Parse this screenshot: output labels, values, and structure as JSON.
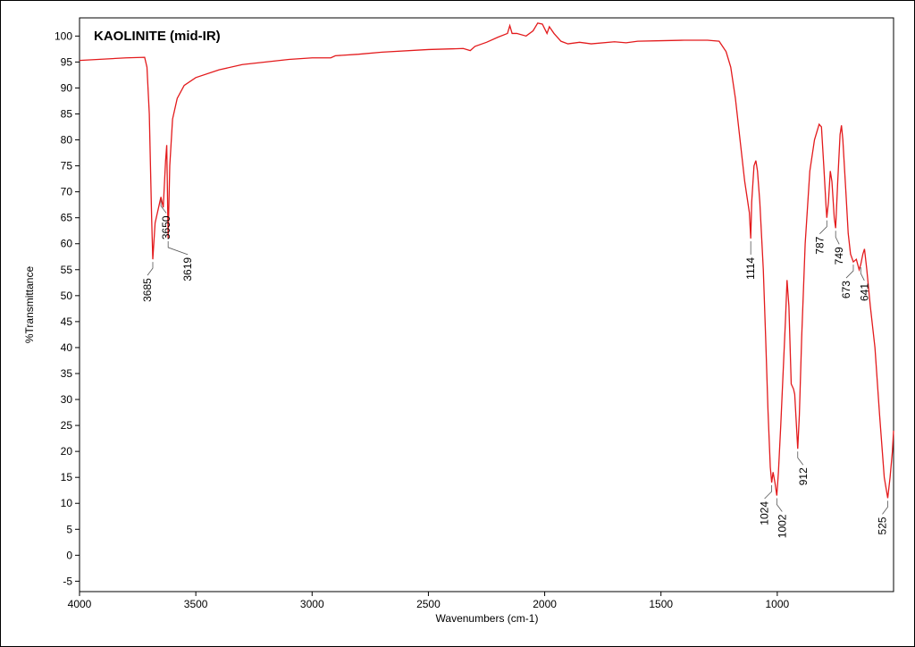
{
  "chart_data": {
    "type": "line",
    "title": "KAOLINITE (mid-IR)",
    "x_label": "Wavenumbers (cm-1)",
    "y_label": "%Transmittance",
    "color": "#e31a1c",
    "xlim": [
      4000,
      500
    ],
    "ylim": [
      -7,
      103.5
    ],
    "xticks": [
      4000,
      3500,
      3000,
      2500,
      2000,
      1500,
      1000
    ],
    "yticks": [
      -5,
      0,
      5,
      10,
      15,
      20,
      25,
      30,
      35,
      40,
      45,
      50,
      55,
      60,
      65,
      70,
      75,
      80,
      85,
      90,
      95,
      100
    ],
    "x": [
      4000,
      3800,
      3720,
      3710,
      3700,
      3690,
      3685,
      3675,
      3665,
      3650,
      3640,
      3630,
      3625,
      3619,
      3612,
      3600,
      3580,
      3550,
      3500,
      3400,
      3300,
      3100,
      3000,
      2920,
      2900,
      2800,
      2700,
      2500,
      2350,
      2320,
      2300,
      2250,
      2200,
      2160,
      2150,
      2140,
      2120,
      2080,
      2050,
      2030,
      2010,
      1990,
      1980,
      1960,
      1930,
      1900,
      1850,
      1800,
      1700,
      1650,
      1600,
      1500,
      1400,
      1300,
      1250,
      1220,
      1200,
      1180,
      1160,
      1140,
      1120,
      1114,
      1110,
      1100,
      1092,
      1085,
      1075,
      1060,
      1050,
      1040,
      1030,
      1024,
      1018,
      1010,
      1002,
      995,
      985,
      975,
      965,
      958,
      950,
      940,
      930,
      925,
      912,
      905,
      895,
      880,
      860,
      840,
      820,
      810,
      800,
      790,
      787,
      780,
      772,
      765,
      755,
      749,
      740,
      730,
      724,
      718,
      705,
      695,
      685,
      673,
      660,
      648,
      641,
      632,
      625,
      615,
      600,
      580,
      560,
      540,
      525,
      515,
      505,
      500
    ],
    "values": [
      95.3,
      95.8,
      95.9,
      94,
      85,
      65,
      57,
      64,
      66,
      69,
      67,
      76,
      79,
      61,
      75,
      84,
      88,
      90.5,
      92,
      93.5,
      94.5,
      95.5,
      95.8,
      95.8,
      96.2,
      96.5,
      96.9,
      97.4,
      97.6,
      97.2,
      98,
      98.8,
      99.8,
      100.5,
      102,
      100.5,
      100.5,
      100,
      101,
      102.5,
      102.3,
      100.5,
      101.8,
      100.5,
      99,
      98.5,
      98.8,
      98.5,
      98.9,
      98.7,
      99,
      99.1,
      99.2,
      99.2,
      99,
      97,
      94,
      88,
      80,
      72,
      66,
      61,
      68,
      75,
      76,
      74,
      68,
      55,
      42,
      28,
      17,
      14,
      16,
      14,
      11.5,
      16,
      25,
      35,
      45,
      53,
      48,
      33,
      32,
      31,
      20.5,
      27,
      42,
      60,
      74,
      80,
      83,
      82.5,
      75,
      67,
      65,
      68,
      74,
      72,
      65,
      63,
      72,
      81,
      82.8,
      80,
      70,
      62,
      58,
      56.5,
      57,
      55,
      56,
      58,
      59,
      55,
      48,
      40,
      27,
      15,
      11,
      15,
      20,
      24
    ],
    "peaks": [
      {
        "x": 3685,
        "y": 57
      },
      {
        "x": 3650,
        "y": 69
      },
      {
        "x": 3619,
        "y": 61
      },
      {
        "x": 1114,
        "y": 61
      },
      {
        "x": 1024,
        "y": 14
      },
      {
        "x": 1002,
        "y": 11.5
      },
      {
        "x": 912,
        "y": 20.5
      },
      {
        "x": 787,
        "y": 65
      },
      {
        "x": 749,
        "y": 63
      },
      {
        "x": 673,
        "y": 56.5
      },
      {
        "x": 641,
        "y": 56
      },
      {
        "x": 525,
        "y": 11
      }
    ]
  }
}
